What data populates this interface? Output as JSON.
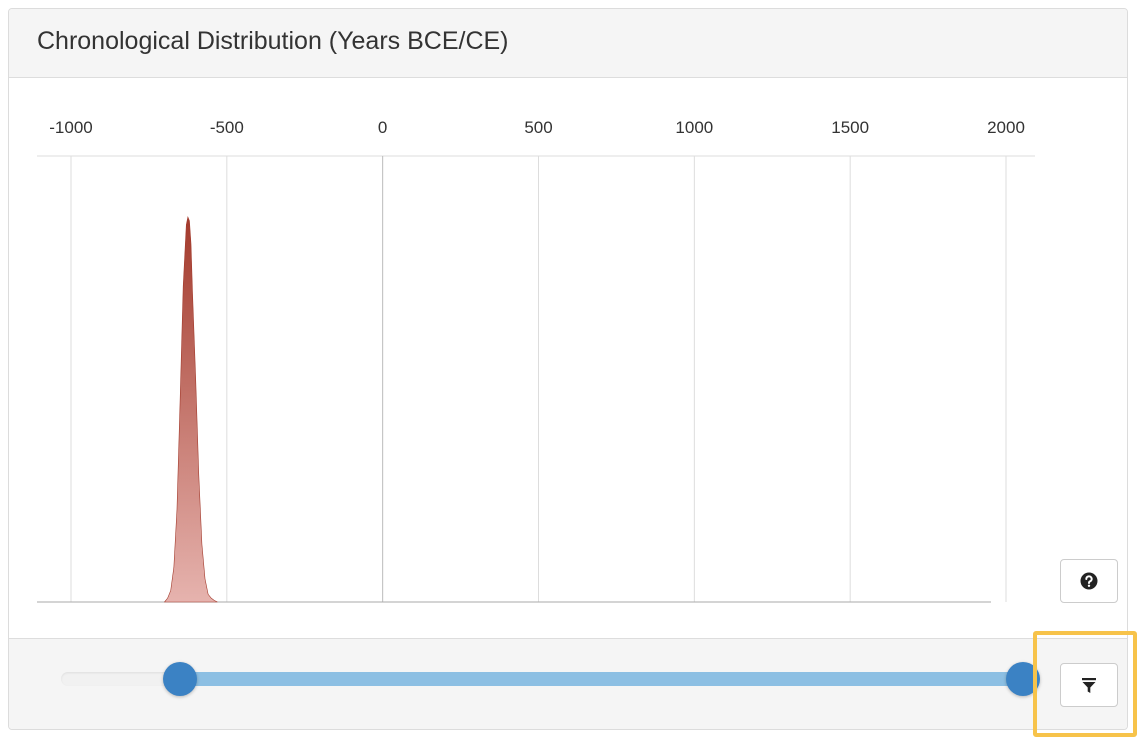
{
  "panel": {
    "title": "Chronological Distribution (Years BCE/CE)"
  },
  "chart_data": {
    "type": "area",
    "title": "Chronological Distribution (Years BCE/CE)",
    "xlabel": "",
    "ylabel": "",
    "xlim": [
      -1000,
      2000
    ],
    "x_ticks": [
      "-1000",
      "-500",
      "0",
      "500",
      "1000",
      "1500",
      "2000"
    ],
    "x_tick_values": [
      -1000,
      -500,
      0,
      500,
      1000,
      1500,
      2000
    ],
    "grid": true,
    "series": [
      {
        "x": [
          -700,
          -690,
          -680,
          -670,
          -660,
          -650,
          -640,
          -630,
          -625,
          -620,
          -615,
          -610,
          -600,
          -590,
          -580,
          -570,
          -560,
          -550,
          -540,
          -530
        ],
        "y": [
          0.0,
          0.01,
          0.03,
          0.09,
          0.24,
          0.52,
          0.82,
          0.98,
          1.0,
          0.99,
          0.93,
          0.8,
          0.58,
          0.33,
          0.15,
          0.06,
          0.02,
          0.01,
          0.004,
          0.0
        ]
      }
    ],
    "colors": {
      "fill_top": "#a33a2c",
      "fill_bottom": "#e6b3ae",
      "grid": "#dddddd",
      "zero_line": "#bbbbbb",
      "baseline": "#aaaaaa"
    }
  },
  "range_slider": {
    "min": -1000,
    "max": 2000,
    "low": -630,
    "high": 2000,
    "track_color": "#f1f1f1",
    "range_color": "#8cbfe3",
    "handle_color": "#3b82c4"
  },
  "buttons": {
    "help_icon": "question-circle-icon",
    "filter_icon": "filter-icon",
    "highlight_color": "#f7c34a"
  }
}
